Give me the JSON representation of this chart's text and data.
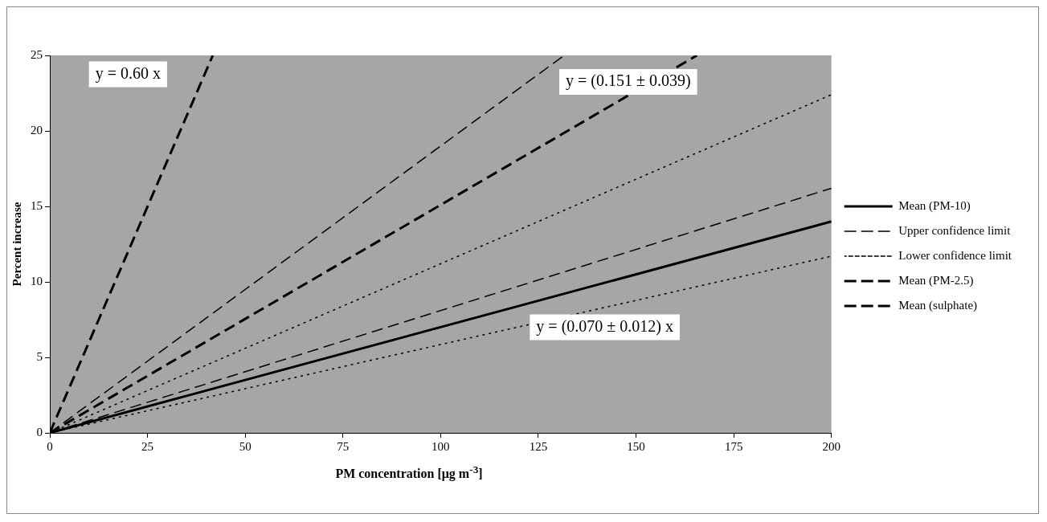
{
  "chart_data": {
    "type": "line",
    "xlabel": "PM concentration [μg m$^{-3}$]",
    "ylabel": "Percent increase",
    "xlim": [
      0,
      200
    ],
    "xticks": [
      0,
      25,
      50,
      75,
      100,
      125,
      150,
      175,
      200
    ],
    "ylim": [
      0,
      25
    ],
    "yticks": [
      0,
      5,
      10,
      15,
      20,
      25
    ],
    "grid": false,
    "legend": "right",
    "marker": "none",
    "series": [
      {
        "name": "Mean (PM-10)",
        "color": "#000000",
        "line_style": "solid",
        "x": [
          0,
          200
        ],
        "values": [
          0,
          14
        ]
      },
      {
        "name": "Upper confidence limit",
        "color": "#000000",
        "line_style": "dashed",
        "x": [
          0,
          200
        ],
        "values": [
          0,
          16.2
        ]
      },
      {
        "name": "Lower confidence limit",
        "color": "#000000",
        "line_style": "dotted",
        "x": [
          0,
          200
        ],
        "values": [
          0,
          11.7
        ]
      },
      {
        "name": "Mean (PM-2.5)",
        "color": "#000000",
        "line_style": "dashed",
        "x": [
          0,
          165.6
        ],
        "values": [
          0,
          25
        ]
      },
      {
        "name": "Mean (sulphate)",
        "color": "#000000",
        "line_style": "dashed",
        "x": [
          0,
          41.7
        ],
        "values": [
          0,
          25
        ]
      },
      {
        "color": "#000000",
        "line_style": "dashed",
        "x": [
          0,
          131.6
        ],
        "values": [
          0,
          25
        ]
      },
      {
        "color": "#000000",
        "line_style": "dotted",
        "x": [
          0,
          200
        ],
        "values": [
          0,
          22.4
        ]
      }
    ],
    "annotations": [
      "y = 0.60 x",
      "y = (0.151 ± 0.039)",
      "y = (0.070 ± 0.012) x"
    ]
  }
}
